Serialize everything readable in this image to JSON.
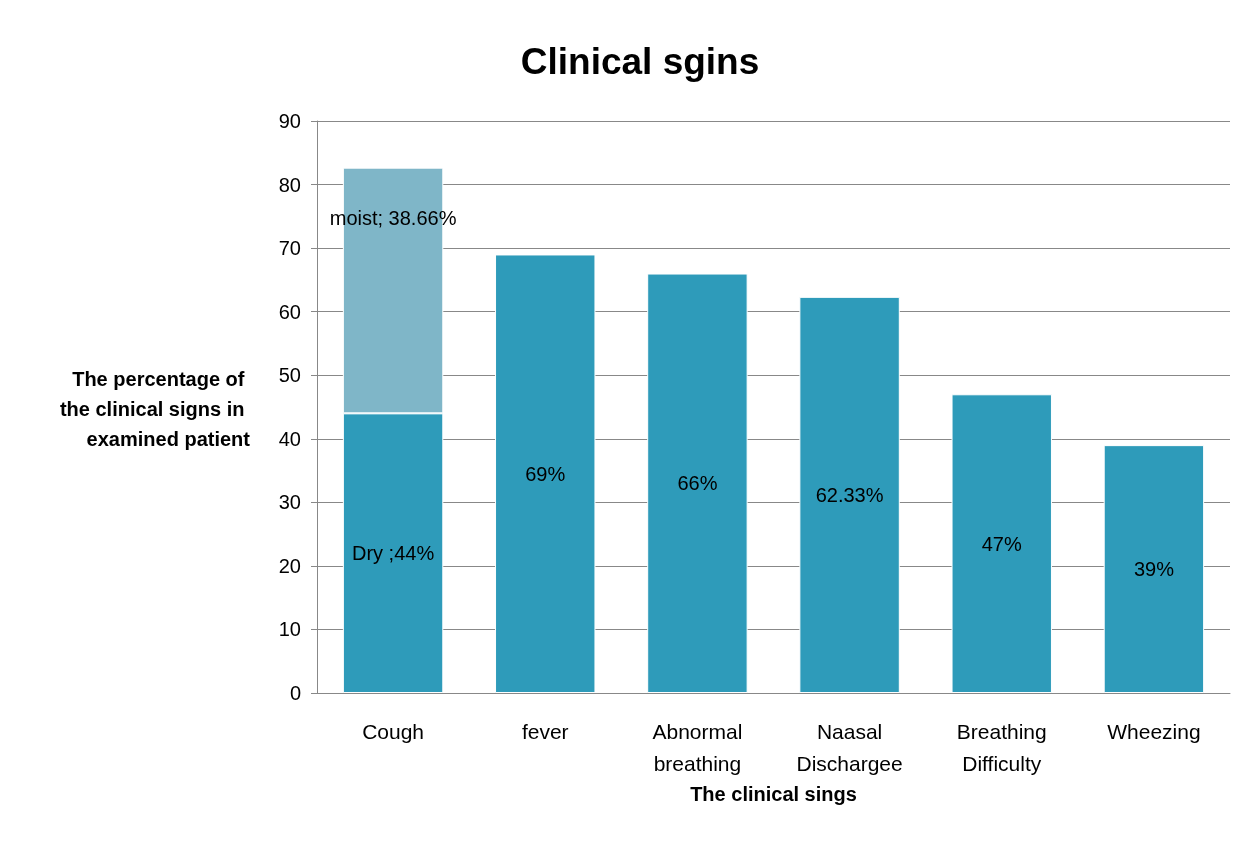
{
  "chart_data": {
    "type": "bar",
    "title": "Clinical sgins",
    "xlabel": "The clinical sings",
    "ylabel": "The percentage of the clinical signs in examined patient",
    "categories": [
      "Cough",
      "fever",
      "Abnormal breathing",
      "Naasal Dischargee",
      "Breathing Difficulty",
      "Wheezing"
    ],
    "stacked": true,
    "series": [
      {
        "color": "#2e9bba",
        "values": [
          44,
          69,
          66,
          62.33,
          47,
          39
        ],
        "value_labels": [
          "Dry ;44%",
          "69%",
          "66%",
          "62.33%",
          "47%",
          "39%"
        ]
      },
      {
        "color": "#7fb6c8",
        "values": [
          38.66,
          null,
          null,
          null,
          null,
          null
        ],
        "value_labels": [
          "moist; 38.66%",
          null,
          null,
          null,
          null,
          null
        ]
      }
    ],
    "ylim": [
      0,
      90
    ],
    "yticks": [
      0,
      10,
      20,
      30,
      40,
      50,
      60,
      70,
      80,
      90
    ],
    "grid": "y"
  }
}
